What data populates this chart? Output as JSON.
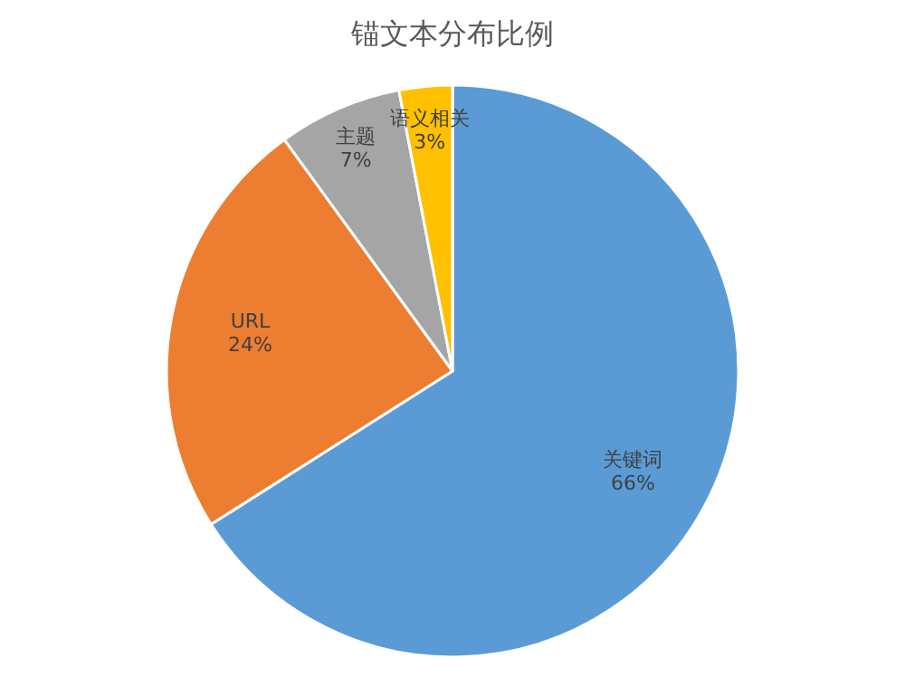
{
  "chart_data": {
    "type": "pie",
    "title": "锚文本分布比例",
    "categories": [
      "关键词",
      "URL",
      "主题",
      "语义相关"
    ],
    "values": [
      66,
      24,
      7,
      3
    ],
    "colors": [
      "#5b9bd5",
      "#ed7d31",
      "#a5a5a5",
      "#ffc000"
    ],
    "value_labels": [
      "66%",
      "24%",
      "7%",
      "3%"
    ],
    "legend": false
  }
}
